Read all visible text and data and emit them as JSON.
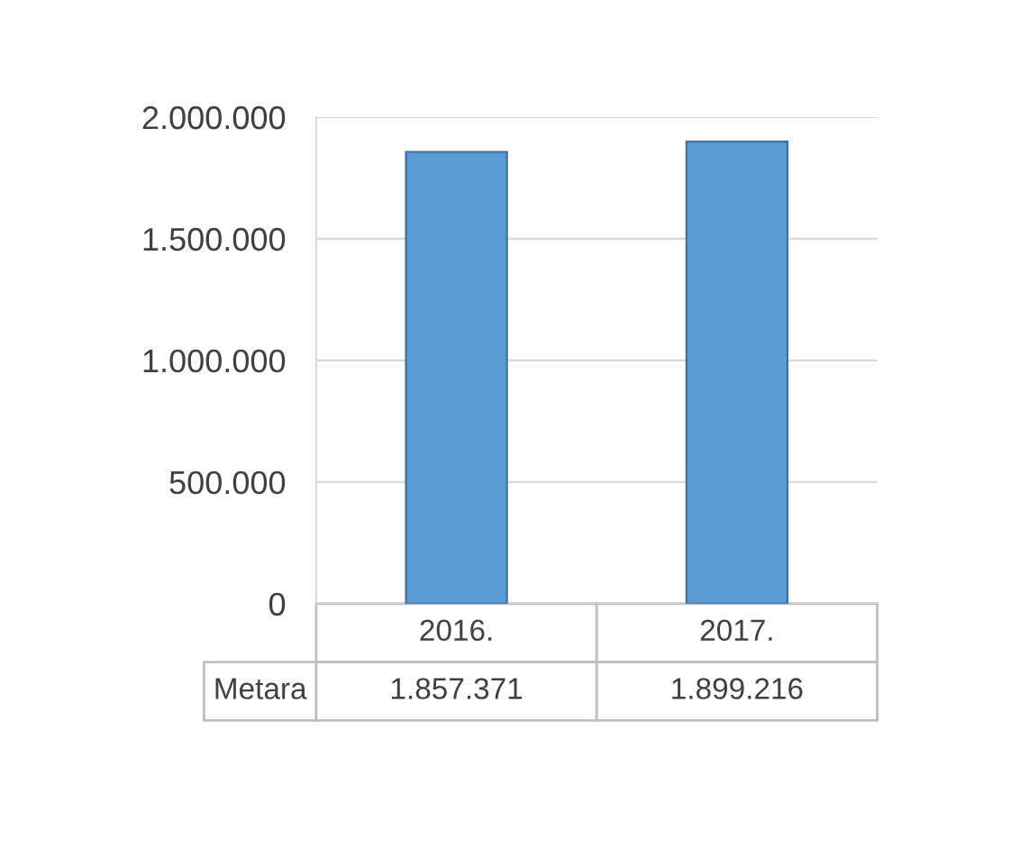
{
  "chart_data": {
    "type": "bar",
    "categories": [
      "2016.",
      "2017."
    ],
    "series": [
      {
        "name": "Metara",
        "color": "#5b9bd5",
        "values": [
          1857371,
          1899216
        ],
        "value_labels": [
          "1.857.371",
          "1.899.216"
        ]
      }
    ],
    "ylim": [
      0,
      2000000
    ],
    "yticks": [
      0,
      {
        "value": 500000,
        "label": "500.000"
      },
      {
        "value": 1000000,
        "label": "1.000.000"
      },
      {
        "value": 1500000,
        "label": "1.500.000"
      },
      {
        "value": 2000000,
        "label": "2.000.000"
      }
    ],
    "grid": "y",
    "legend": false
  }
}
